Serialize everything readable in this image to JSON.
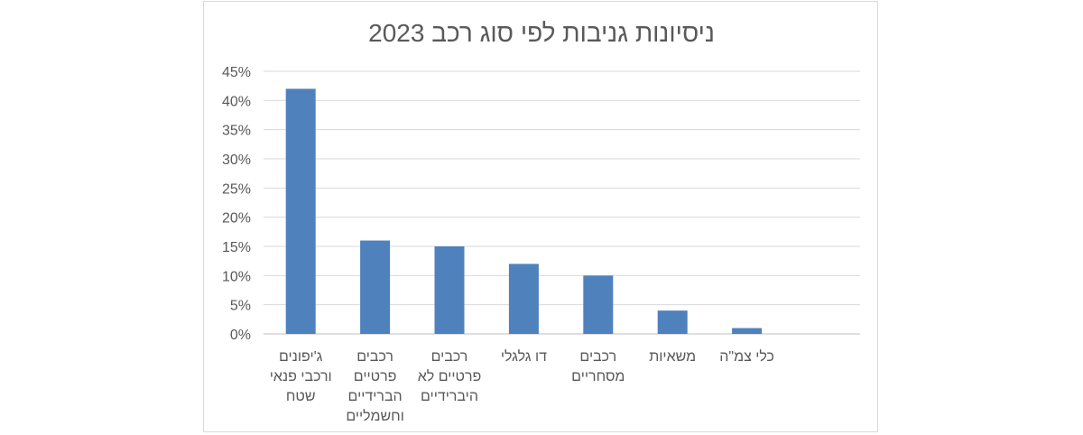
{
  "chart_data": {
    "type": "bar",
    "title": "ניסיונות גניבות לפי סוג רכב 2023",
    "categories": [
      [
        "ג'יפונים",
        "ורכבי פנאי",
        "שטח"
      ],
      [
        "רכבים",
        "פרטיים",
        "הברידיים",
        "וחשמליים"
      ],
      [
        "רכבים",
        "פרטיים לא",
        "היברידיים"
      ],
      [
        "דו גלגלי"
      ],
      [
        "רכבים",
        "מסחריים"
      ],
      [
        "משאיות"
      ],
      [
        "כלי צמ\"ה"
      ]
    ],
    "values": [
      42,
      16,
      15,
      12,
      10,
      4,
      1
    ],
    "value_unit": "%",
    "ylim": [
      0,
      45
    ],
    "yticks": [
      0,
      5,
      10,
      15,
      20,
      25,
      30,
      35,
      40,
      45
    ],
    "ytick_labels": [
      "0%",
      "5%",
      "10%",
      "15%",
      "20%",
      "25%",
      "30%",
      "35%",
      "40%",
      "45%"
    ],
    "xlabel": "",
    "ylabel": "",
    "grid": true,
    "legend": "none",
    "colors": {
      "bar": "#4f81bd",
      "grid": "#d9d9d9",
      "axis": "#bfbfbf",
      "text": "#595959"
    }
  }
}
